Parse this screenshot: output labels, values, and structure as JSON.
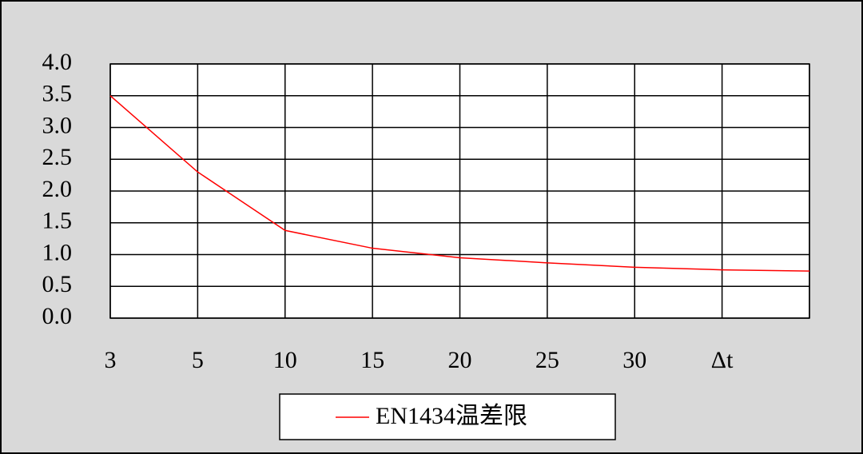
{
  "chart_data": {
    "type": "line",
    "categories": [
      "3",
      "5",
      "10",
      "15",
      "20",
      "25",
      "30",
      "Δt",
      null
    ],
    "series": [
      {
        "name": "EN1434温差限",
        "color": "#ff0000",
        "values": [
          3.5,
          2.3,
          1.38,
          1.1,
          0.95,
          0.87,
          0.8,
          0.76,
          0.74
        ]
      }
    ],
    "ylim": [
      0,
      4
    ],
    "yticks": [
      {
        "value": 0,
        "label": "0.0"
      },
      0.5,
      {
        "value": 1,
        "label": "1.0"
      },
      1.5,
      {
        "value": 2,
        "label": "2.0"
      },
      2.5,
      {
        "value": 3,
        "label": "3.0"
      },
      3.5,
      {
        "value": 4,
        "label": "4.0"
      }
    ],
    "grid": true,
    "legend": "bottom"
  }
}
